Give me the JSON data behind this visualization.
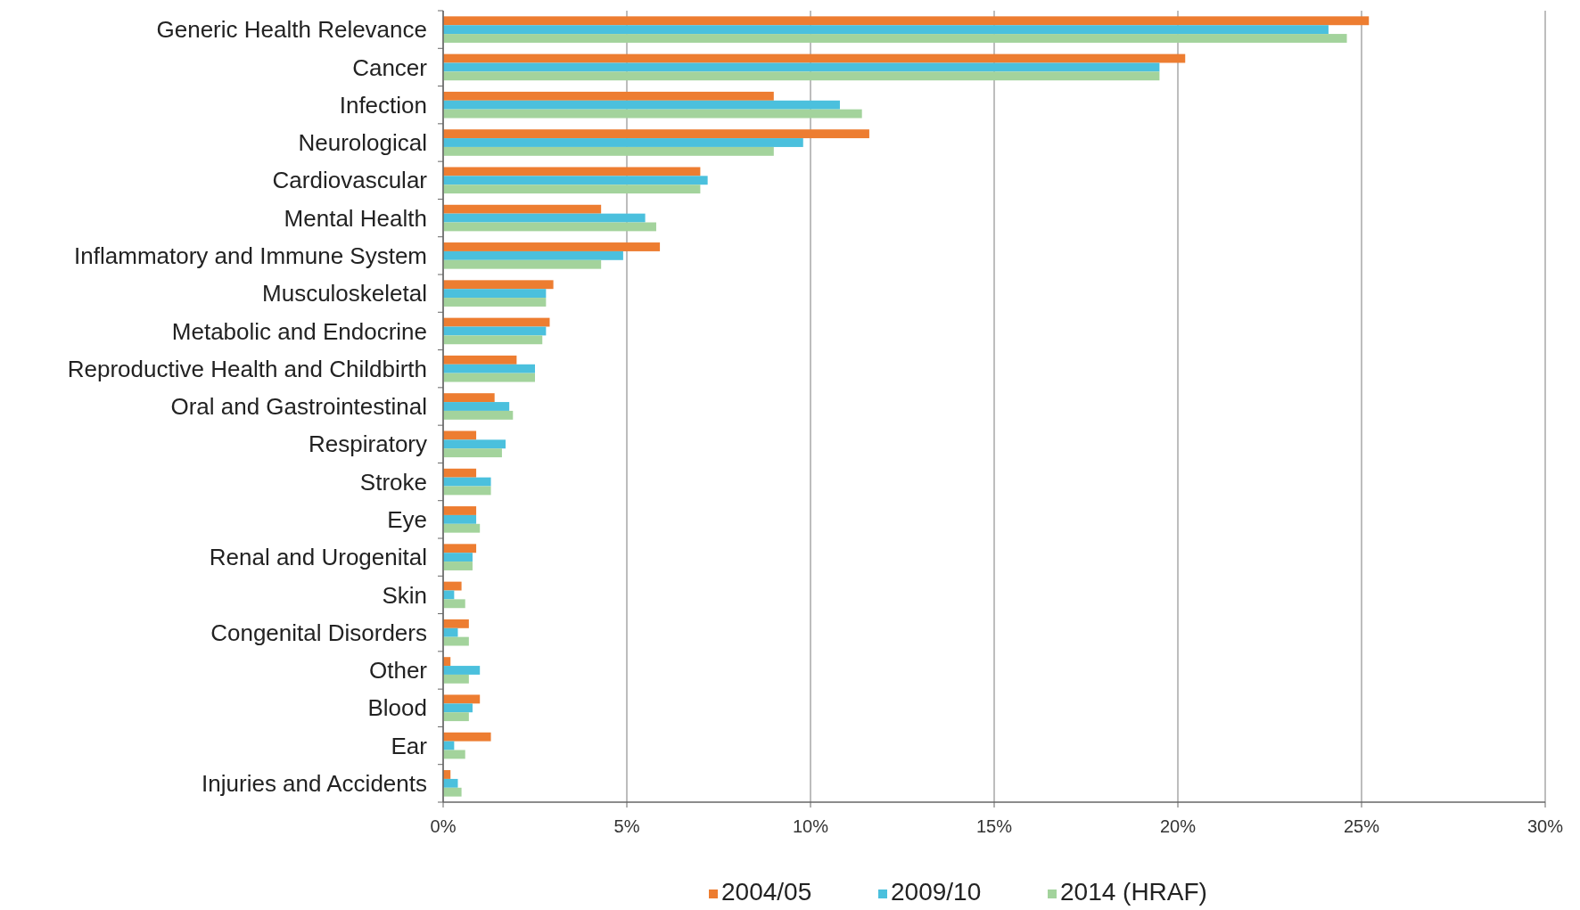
{
  "chart_data": {
    "type": "bar",
    "orientation": "horizontal",
    "categories": [
      "Generic Health Relevance",
      "Cancer",
      "Infection",
      "Neurological",
      "Cardiovascular",
      "Mental Health",
      "Inflammatory and Immune System",
      "Musculoskeletal",
      "Metabolic and Endocrine",
      "Reproductive Health and Childbirth",
      "Oral and Gastrointestinal",
      "Respiratory",
      "Stroke",
      "Eye",
      "Renal and Urogenital",
      "Skin",
      "Congenital Disorders",
      "Other",
      "Blood",
      "Ear",
      "Injuries and Accidents"
    ],
    "series": [
      {
        "name": "2004/05",
        "color": "#ed7d31",
        "values": [
          25.2,
          20.2,
          9.0,
          11.6,
          7.0,
          4.3,
          5.9,
          3.0,
          2.9,
          2.0,
          1.4,
          0.9,
          0.9,
          0.9,
          0.9,
          0.5,
          0.7,
          0.2,
          1.0,
          1.3,
          0.2
        ]
      },
      {
        "name": "2009/10",
        "color": "#4bc0dd",
        "values": [
          24.1,
          19.5,
          10.8,
          9.8,
          7.2,
          5.5,
          4.9,
          2.8,
          2.8,
          2.5,
          1.8,
          1.7,
          1.3,
          0.9,
          0.8,
          0.3,
          0.4,
          1.0,
          0.8,
          0.3,
          0.4
        ]
      },
      {
        "name": "2014 (HRAF)",
        "color": "#a3d39c",
        "values": [
          24.6,
          19.5,
          11.4,
          9.0,
          7.0,
          5.8,
          4.3,
          2.8,
          2.7,
          2.5,
          1.9,
          1.6,
          1.3,
          1.0,
          0.8,
          0.6,
          0.7,
          0.7,
          0.7,
          0.6,
          0.5
        ]
      }
    ],
    "xlim": [
      0,
      30
    ],
    "xticks": [
      {
        "value": 0,
        "label": "0%"
      },
      {
        "value": 5,
        "label": "5%"
      },
      {
        "value": 10,
        "label": "10%"
      },
      {
        "value": 15,
        "label": "15%"
      },
      {
        "value": 20,
        "label": "20%"
      },
      {
        "value": 25,
        "label": "25%"
      },
      {
        "value": 30,
        "label": "30%"
      }
    ],
    "grid": "x",
    "legend": "bottom"
  }
}
